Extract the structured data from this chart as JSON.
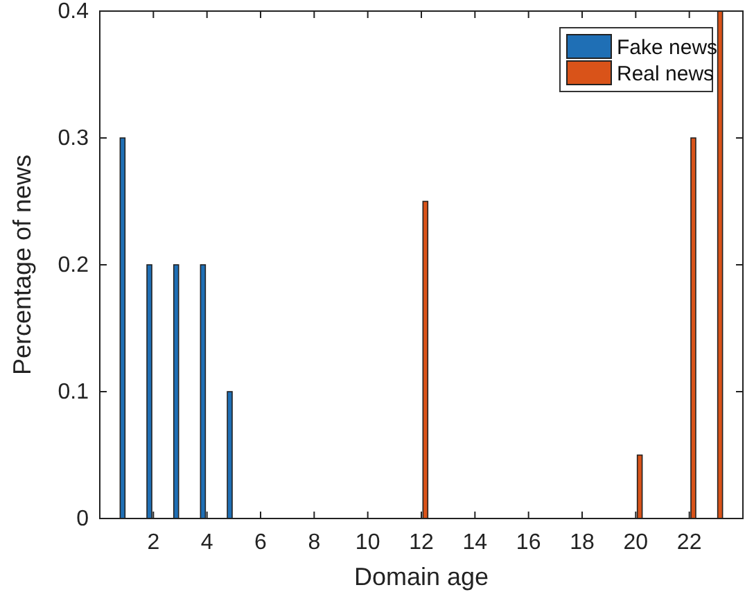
{
  "chart_data": {
    "type": "bar",
    "xlabel": "Domain age",
    "ylabel": "Percentage of news",
    "x": [
      1,
      2,
      3,
      4,
      5,
      6,
      7,
      8,
      9,
      10,
      11,
      12,
      13,
      14,
      15,
      16,
      17,
      18,
      19,
      20,
      21,
      22,
      23
    ],
    "series": [
      {
        "name": "Fake news",
        "color": "#1f6fb5",
        "values": [
          0.3,
          0.2,
          0.2,
          0.2,
          0.1,
          0,
          0,
          0,
          0,
          0,
          0,
          0,
          0,
          0,
          0,
          0,
          0,
          0,
          0,
          0,
          0,
          0,
          0
        ]
      },
      {
        "name": "Real news",
        "color": "#d95319",
        "values": [
          0,
          0,
          0,
          0,
          0,
          0,
          0,
          0,
          0,
          0,
          0,
          0.25,
          0,
          0,
          0,
          0,
          0,
          0,
          0,
          0.05,
          0,
          0.3,
          0.4
        ]
      }
    ],
    "xlim": [
      0,
      24
    ],
    "xticks": [
      2,
      4,
      6,
      8,
      10,
      12,
      14,
      16,
      18,
      20,
      22
    ],
    "ylim": [
      0,
      0.4
    ],
    "yticks": [
      0,
      0.1,
      0.2,
      0.3,
      0.4
    ],
    "legend": "top right",
    "grid": false
  }
}
